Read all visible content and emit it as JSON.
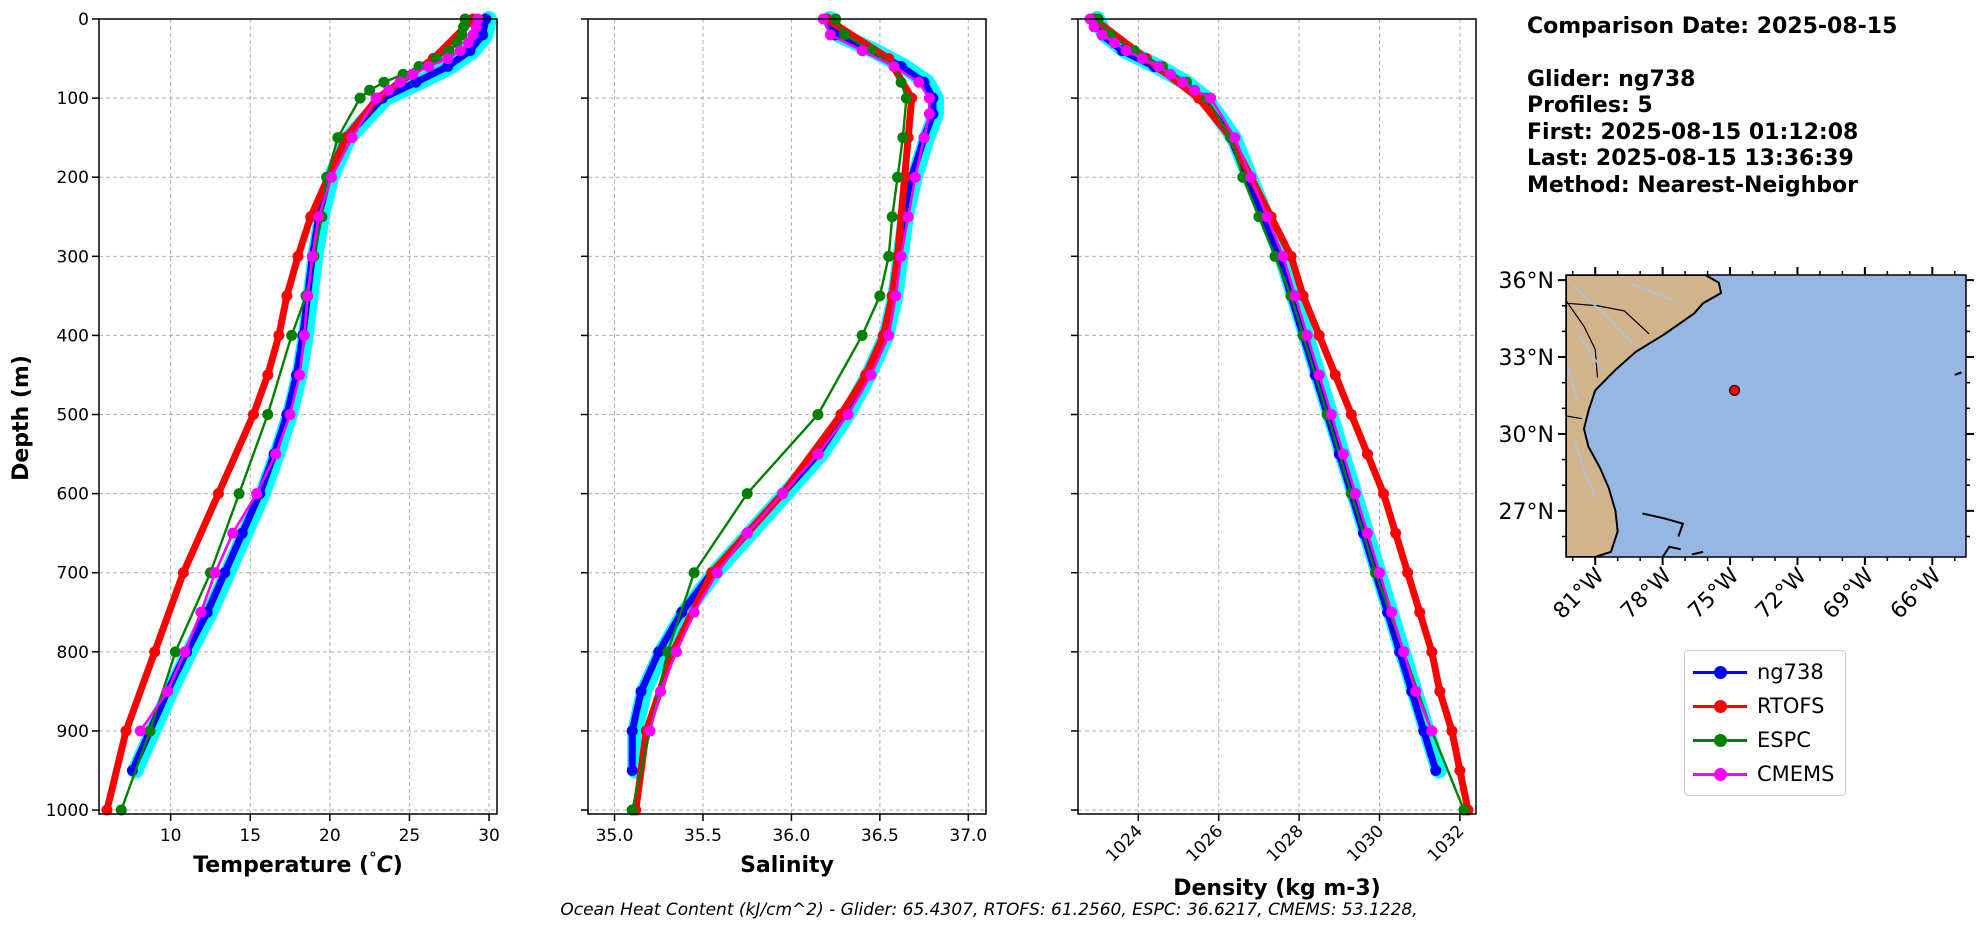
{
  "colors": {
    "ng738": "#0000ff",
    "ng738_range": "#00ffff",
    "RTOFS": "#ff0000",
    "ESPC": "#008000",
    "CMEMS": "#ff00ff",
    "land": "#d2b48c",
    "ocean": "#97b6e1"
  },
  "info_text": {
    "comparison_date": "Comparison Date: 2025-08-15",
    "glider": "Glider: ng738",
    "profiles": "Profiles: 5",
    "first": "First: 2025-08-15 01:12:08",
    "last": "Last: 2025-08-15 13:36:39",
    "method": "Method: Nearest-Neighbor"
  },
  "legend": [
    "ng738",
    "RTOFS",
    "ESPC",
    "CMEMS"
  ],
  "footer": "Ocean Heat Content (kJ/cm^2) - Glider: 65.4307,  RTOFS: 61.2560,  ESPC: 36.6217,  CMEMS: 53.1228,",
  "map": {
    "lon_ticks": [
      "81°W",
      "78°W",
      "75°W",
      "72°W",
      "69°W",
      "66°W"
    ],
    "lat_ticks": [
      "36°N",
      "33°N",
      "30°N",
      "27°N"
    ],
    "glider_position": {
      "lon": -74.8,
      "lat": 31.7
    }
  },
  "chart_data": [
    {
      "type": "line",
      "xlabel": "Temperature (°C)",
      "ylabel": "Depth (m)",
      "xlim": [
        5.5,
        30.5
      ],
      "ylim": [
        1005,
        0
      ],
      "x_ticks": [
        "10",
        "15",
        "20",
        "25",
        "30"
      ],
      "y_ticks": [
        "0",
        "100",
        "200",
        "300",
        "400",
        "500",
        "600",
        "700",
        "800",
        "900",
        "1000"
      ],
      "grid": true,
      "series": [
        {
          "name": "ng738",
          "depth": [
            0,
            20,
            40,
            60,
            80,
            100,
            150,
            200,
            250,
            300,
            350,
            400,
            450,
            500,
            550,
            600,
            650,
            700,
            750,
            800,
            850,
            900,
            950
          ],
          "values": [
            29.8,
            29.6,
            28.8,
            27.4,
            25.4,
            23.3,
            21.0,
            19.9,
            19.3,
            18.9,
            18.6,
            18.3,
            17.9,
            17.3,
            16.5,
            15.6,
            14.5,
            13.4,
            12.3,
            11.0,
            9.8,
            8.7,
            7.6
          ]
        },
        {
          "name": "RTOFS",
          "depth": [
            0,
            50,
            100,
            150,
            200,
            250,
            300,
            350,
            400,
            450,
            500,
            600,
            700,
            800,
            900,
            1000
          ],
          "values": [
            29.0,
            26.5,
            23.0,
            21.0,
            19.9,
            18.8,
            18.0,
            17.3,
            16.8,
            16.1,
            15.2,
            13.0,
            10.8,
            9.0,
            7.2,
            6.0
          ]
        },
        {
          "name": "ESPC",
          "depth": [
            0,
            10,
            20,
            30,
            40,
            50,
            60,
            70,
            80,
            90,
            100,
            150,
            200,
            250,
            300,
            350,
            400,
            500,
            600,
            700,
            800,
            900,
            1000
          ],
          "values": [
            28.5,
            28.4,
            28.3,
            28.0,
            27.5,
            26.7,
            25.6,
            24.6,
            23.4,
            22.5,
            21.9,
            20.5,
            19.8,
            19.5,
            19.0,
            18.5,
            17.6,
            16.1,
            14.3,
            12.5,
            10.3,
            8.7,
            6.9
          ]
        },
        {
          "name": "CMEMS",
          "depth": [
            0,
            10,
            20,
            30,
            40,
            50,
            60,
            70,
            80,
            90,
            100,
            150,
            200,
            250,
            300,
            350,
            400,
            450,
            500,
            550,
            600,
            650,
            700,
            750,
            800,
            850,
            900
          ],
          "values": [
            29.3,
            29.2,
            29.0,
            28.7,
            28.2,
            27.4,
            26.2,
            25.2,
            24.4,
            23.7,
            22.9,
            21.4,
            20.1,
            19.3,
            18.9,
            18.6,
            18.4,
            18.1,
            17.5,
            16.6,
            15.4,
            13.9,
            12.8,
            11.9,
            10.9,
            9.8,
            8.1
          ]
        }
      ]
    },
    {
      "type": "line",
      "xlabel": "Salinity",
      "xlim": [
        34.85,
        37.1
      ],
      "ylim": [
        1005,
        0
      ],
      "x_ticks": [
        "35.0",
        "35.5",
        "36.0",
        "36.5",
        "37.0"
      ],
      "grid": true,
      "series": [
        {
          "name": "ng738",
          "depth": [
            0,
            20,
            40,
            60,
            80,
            100,
            120,
            150,
            200,
            250,
            300,
            350,
            400,
            450,
            500,
            550,
            600,
            650,
            700,
            750,
            800,
            850,
            900,
            950
          ],
          "values": [
            36.2,
            36.25,
            36.45,
            36.62,
            36.75,
            36.8,
            36.8,
            36.75,
            36.68,
            36.63,
            36.6,
            36.57,
            36.52,
            36.42,
            36.3,
            36.15,
            35.95,
            35.75,
            35.55,
            35.38,
            35.25,
            35.15,
            35.1,
            35.1
          ]
        },
        {
          "name": "RTOFS",
          "depth": [
            0,
            50,
            100,
            150,
            200,
            300,
            350,
            400,
            450,
            500,
            600,
            700,
            800,
            900,
            1000
          ],
          "values": [
            36.2,
            36.55,
            36.68,
            36.66,
            36.64,
            36.6,
            36.57,
            36.52,
            36.42,
            36.28,
            35.95,
            35.55,
            35.33,
            35.18,
            35.12
          ]
        },
        {
          "name": "ESPC",
          "depth": [
            0,
            20,
            40,
            60,
            80,
            100,
            150,
            200,
            250,
            300,
            350,
            400,
            500,
            600,
            700,
            800,
            900,
            1000
          ],
          "values": [
            36.25,
            36.3,
            36.45,
            36.58,
            36.62,
            36.65,
            36.63,
            36.6,
            36.57,
            36.55,
            36.5,
            36.4,
            36.15,
            35.75,
            35.45,
            35.3,
            35.2,
            35.1
          ]
        },
        {
          "name": "CMEMS",
          "depth": [
            0,
            20,
            40,
            60,
            80,
            100,
            120,
            150,
            200,
            250,
            300,
            350,
            400,
            450,
            500,
            550,
            600,
            650,
            700,
            750,
            800,
            850,
            900
          ],
          "values": [
            36.18,
            36.22,
            36.4,
            36.58,
            36.72,
            36.78,
            36.78,
            36.75,
            36.7,
            36.66,
            36.62,
            36.59,
            36.55,
            36.45,
            36.32,
            36.15,
            35.95,
            35.75,
            35.58,
            35.45,
            35.35,
            35.26,
            35.2
          ]
        }
      ]
    },
    {
      "type": "line",
      "xlabel": "Density (kg m-3)",
      "xlim": [
        1022.5,
        1032.4
      ],
      "ylim": [
        1005,
        0
      ],
      "x_ticks": [
        "1024",
        "1026",
        "1028",
        "1030",
        "1032"
      ],
      "grid": true,
      "series": [
        {
          "name": "ng738",
          "depth": [
            0,
            20,
            40,
            60,
            80,
            100,
            150,
            200,
            250,
            300,
            350,
            400,
            450,
            500,
            550,
            600,
            650,
            700,
            750,
            800,
            850,
            900,
            950
          ],
          "values": [
            1022.9,
            1023.1,
            1023.6,
            1024.4,
            1025.1,
            1025.6,
            1026.3,
            1026.7,
            1027.1,
            1027.5,
            1027.8,
            1028.1,
            1028.4,
            1028.7,
            1029.0,
            1029.3,
            1029.6,
            1029.9,
            1030.2,
            1030.5,
            1030.8,
            1031.1,
            1031.4
          ]
        },
        {
          "name": "RTOFS",
          "depth": [
            0,
            50,
            100,
            150,
            200,
            250,
            300,
            350,
            400,
            450,
            500,
            550,
            600,
            650,
            700,
            750,
            800,
            850,
            900,
            950,
            1000
          ],
          "values": [
            1022.9,
            1024.2,
            1025.5,
            1026.3,
            1026.8,
            1027.3,
            1027.8,
            1028.1,
            1028.5,
            1028.9,
            1029.3,
            1029.7,
            1030.1,
            1030.4,
            1030.7,
            1031.0,
            1031.3,
            1031.5,
            1031.8,
            1032.0,
            1032.2
          ]
        },
        {
          "name": "ESPC",
          "depth": [
            0,
            20,
            40,
            60,
            80,
            100,
            150,
            200,
            250,
            300,
            350,
            400,
            500,
            600,
            700,
            800,
            900,
            1000
          ],
          "values": [
            1023.0,
            1023.3,
            1023.9,
            1024.6,
            1025.2,
            1025.7,
            1026.3,
            1026.6,
            1027.0,
            1027.4,
            1027.8,
            1028.1,
            1028.7,
            1029.3,
            1029.9,
            1030.6,
            1031.3,
            1032.1
          ]
        },
        {
          "name": "CMEMS",
          "depth": [
            0,
            10,
            20,
            30,
            40,
            50,
            60,
            70,
            80,
            90,
            100,
            150,
            200,
            250,
            300,
            350,
            400,
            450,
            500,
            550,
            600,
            650,
            700,
            750,
            800,
            850,
            900
          ],
          "values": [
            1022.8,
            1022.9,
            1023.1,
            1023.4,
            1023.7,
            1024.1,
            1024.5,
            1024.8,
            1025.1,
            1025.4,
            1025.8,
            1026.4,
            1026.8,
            1027.2,
            1027.6,
            1027.9,
            1028.2,
            1028.5,
            1028.8,
            1029.1,
            1029.4,
            1029.7,
            1030.0,
            1030.3,
            1030.6,
            1030.9,
            1031.3
          ]
        }
      ]
    }
  ]
}
